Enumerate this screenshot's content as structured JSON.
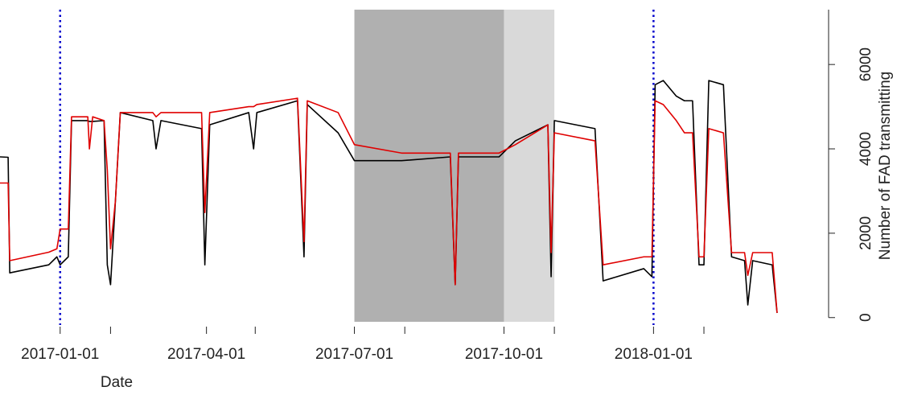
{
  "chart_data": {
    "type": "line",
    "x_label": "Date",
    "y_label": "Number of FAD transmitting",
    "y_axis_side": "right",
    "xlim": [
      "2016-11-25",
      "2018-03-20"
    ],
    "xticks": [
      "2017-01-01",
      "2017-04-01",
      "2017-07-01",
      "2017-10-01",
      "2018-01-01"
    ],
    "x_minor_ticks": [
      "2017-02-01",
      "2017-05-01",
      "2017-08-01",
      "2017-11-01",
      "2018-02-01"
    ],
    "ylim": [
      -100,
      7300
    ],
    "yticks": [
      0,
      2000,
      4000,
      6000
    ],
    "shaded_regions": [
      {
        "start": "2017-07-01",
        "end": "2017-10-01",
        "color": "#b0b0b0"
      },
      {
        "start": "2017-10-01",
        "end": "2017-11-01",
        "color": "#d9d9d9"
      }
    ],
    "vlines": [
      {
        "x": "2017-01-01",
        "color": "#0000cc"
      },
      {
        "x": "2018-01-01",
        "color": "#0000cc"
      }
    ],
    "x": [
      "2016-11-25",
      "2016-11-30",
      "2016-12-01",
      "2016-12-25",
      "2016-12-30",
      "2017-01-01",
      "2017-01-06",
      "2017-01-08",
      "2017-01-18",
      "2017-01-19",
      "2017-01-21",
      "2017-01-28",
      "2017-01-30",
      "2017-02-01",
      "2017-02-04",
      "2017-02-07",
      "2017-02-27",
      "2017-03-01",
      "2017-03-04",
      "2017-03-29",
      "2017-03-31",
      "2017-04-03",
      "2017-04-27",
      "2017-04-30",
      "2017-05-02",
      "2017-05-27",
      "2017-05-31",
      "2017-06-02",
      "2017-06-21",
      "2017-07-01",
      "2017-07-30",
      "2017-08-29",
      "2017-09-01",
      "2017-09-03",
      "2017-09-28",
      "2017-10-08",
      "2017-10-28",
      "2017-10-30",
      "2017-11-01",
      "2017-11-26",
      "2017-12-01",
      "2017-12-26",
      "2017-12-31",
      "2018-01-02",
      "2018-01-07",
      "2018-01-15",
      "2018-01-20",
      "2018-01-25",
      "2018-01-29",
      "2018-02-01",
      "2018-02-04",
      "2018-02-13",
      "2018-02-18",
      "2018-02-26",
      "2018-02-28",
      "2018-03-03",
      "2018-03-15",
      "2018-03-18"
    ],
    "series": [
      {
        "color": "#000000",
        "values": [
          3810,
          3800,
          1060,
          1250,
          1440,
          1250,
          1440,
          4670,
          4670,
          4650,
          4650,
          4670,
          1250,
          780,
          2770,
          4860,
          4670,
          4000,
          4670,
          4480,
          1250,
          4570,
          4860,
          4000,
          4860,
          5140,
          1440,
          5050,
          4380,
          3720,
          3720,
          3810,
          780,
          3810,
          3810,
          4190,
          4570,
          970,
          4670,
          4480,
          870,
          1160,
          970,
          5520,
          5620,
          5250,
          5140,
          5140,
          1250,
          1250,
          5620,
          5520,
          1440,
          1350,
          300,
          1350,
          1250,
          110
        ]
      },
      {
        "color": "#e00000",
        "values": [
          3190,
          3190,
          1350,
          1550,
          1630,
          2100,
          2100,
          4760,
          4760,
          4000,
          4760,
          4670,
          3500,
          1630,
          2770,
          4860,
          4860,
          4760,
          4860,
          4860,
          2490,
          4860,
          5000,
          5000,
          5050,
          5200,
          1800,
          5140,
          4860,
          4100,
          3900,
          3900,
          780,
          3900,
          3900,
          4100,
          4570,
          1540,
          4380,
          4190,
          1250,
          1440,
          1440,
          5140,
          5050,
          4670,
          4380,
          4380,
          1440,
          1440,
          4480,
          4380,
          1540,
          1540,
          1000,
          1540,
          1540,
          110
        ]
      }
    ]
  }
}
